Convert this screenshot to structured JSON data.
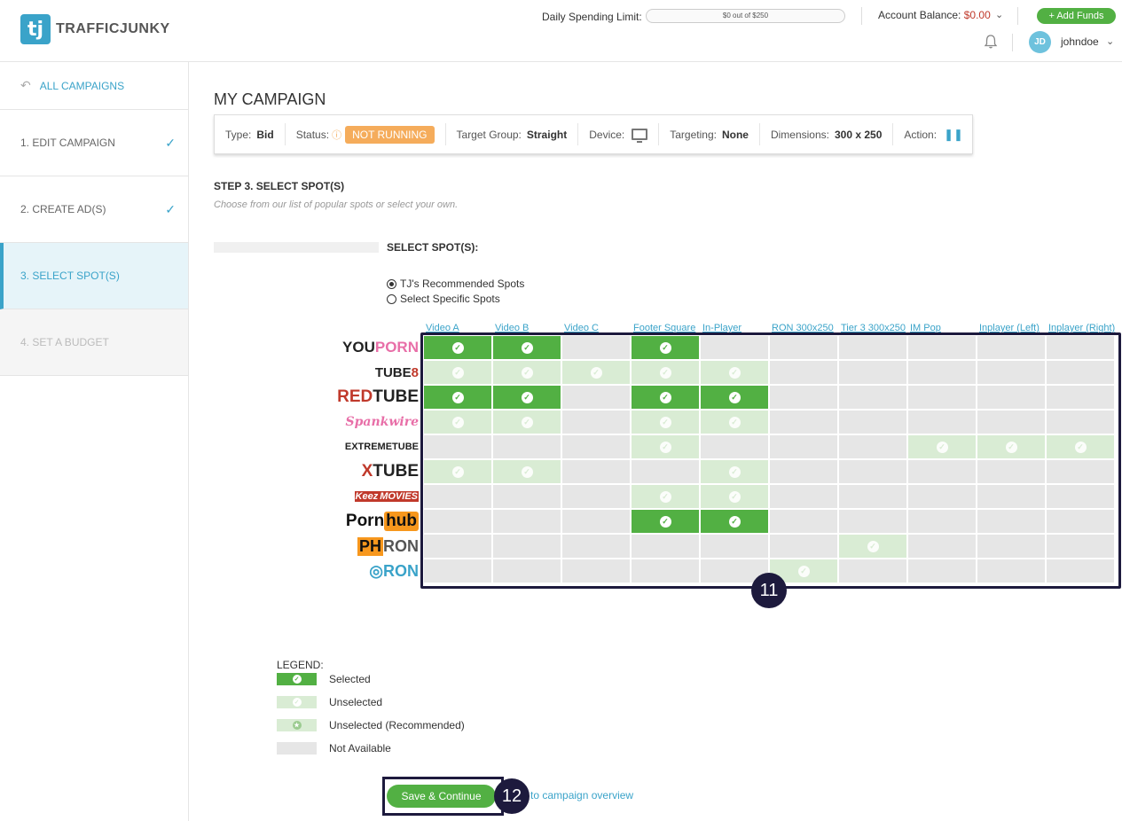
{
  "header": {
    "logo_mark": "tj",
    "logo_text": "TRAFFICJUNKY",
    "daily_limit_label": "Daily Spending Limit:",
    "daily_limit_value": "$0 out of $250",
    "account_balance_label": "Account Balance:",
    "account_balance_value": "$0.00",
    "add_funds_label": "+ Add Funds",
    "avatar_initials": "JD",
    "username": "johndoe",
    "icons": [
      "bell-icon",
      "chevron-down-icon"
    ]
  },
  "sidebar": {
    "all_campaigns": "ALL CAMPAIGNS",
    "items": [
      {
        "label": "1. EDIT CAMPAIGN",
        "state": "done"
      },
      {
        "label": "2. CREATE AD(S)",
        "state": "done"
      },
      {
        "label": "3. SELECT SPOT(S)",
        "state": "active"
      },
      {
        "label": "4. SET A BUDGET",
        "state": "disabled"
      }
    ]
  },
  "main": {
    "title": "MY CAMPAIGN",
    "info": {
      "type_label": "Type:",
      "type_value": "Bid",
      "status_label": "Status:",
      "status_value": "NOT RUNNING",
      "target_group_label": "Target Group:",
      "target_group_value": "Straight",
      "device_label": "Device:",
      "targeting_label": "Targeting:",
      "targeting_value": "None",
      "dimensions_label": "Dimensions:",
      "dimensions_value": "300 x 250",
      "action_label": "Action:"
    },
    "step_title": "STEP 3. SELECT SPOT(S)",
    "step_subtitle": "Choose from our list of popular spots or select your own.",
    "select_label": "SELECT SPOT(S):",
    "radio_recommended": "TJ's Recommended Spots",
    "radio_specific": "Select Specific Spots",
    "selected_radio": "recommended"
  },
  "grid": {
    "columns": [
      "Video A",
      "Video B",
      "Video C",
      "Footer Square",
      "In-Player",
      "RON 300x250",
      "Tier 3 300x250",
      "IM Pop",
      "Inplayer (Left)",
      "Inplayer (Right)"
    ],
    "sites": [
      {
        "name": "YOUPORN",
        "parts": [
          "YOU",
          "PORN"
        ],
        "colors": [
          "#222",
          "#e86fa8"
        ],
        "cells": [
          "s",
          "s",
          "n",
          "s",
          "n",
          "n",
          "n",
          "n",
          "n",
          "n"
        ]
      },
      {
        "name": "TUBE8",
        "parts": [
          "TUBE",
          "8"
        ],
        "colors": [
          "#222",
          "#c0392b"
        ],
        "cells": [
          "u",
          "u",
          "u",
          "u",
          "u",
          "n",
          "n",
          "n",
          "n",
          "n"
        ]
      },
      {
        "name": "REDTUBE",
        "parts": [
          "RED",
          "TUBE"
        ],
        "colors": [
          "#c0392b",
          "#222"
        ],
        "cells": [
          "s",
          "s",
          "n",
          "s",
          "s",
          "n",
          "n",
          "n",
          "n",
          "n"
        ]
      },
      {
        "name": "Spank wire",
        "parts": [
          "Spank",
          "wire"
        ],
        "colors": [
          "#e86fa8",
          "#e86fa8"
        ],
        "cells": [
          "u",
          "u",
          "n",
          "u",
          "u",
          "n",
          "n",
          "n",
          "n",
          "n"
        ]
      },
      {
        "name": "EXTREMETUBE",
        "parts": [
          "EXTREME",
          "TUBE"
        ],
        "colors": [
          "#222",
          "#222"
        ],
        "cells": [
          "n",
          "n",
          "n",
          "u",
          "n",
          "n",
          "n",
          "u",
          "u",
          "u"
        ]
      },
      {
        "name": "XTUBE",
        "parts": [
          "X",
          "TUBE"
        ],
        "colors": [
          "#c0392b",
          "#222"
        ],
        "cells": [
          "u",
          "u",
          "n",
          "n",
          "u",
          "n",
          "n",
          "n",
          "n",
          "n"
        ]
      },
      {
        "name": "Keez MOVIES",
        "parts": [
          "Keez",
          "MOVIES"
        ],
        "colors": [
          "#fff",
          "#fff"
        ],
        "cells": [
          "n",
          "n",
          "n",
          "u",
          "u",
          "n",
          "n",
          "n",
          "n",
          "n"
        ]
      },
      {
        "name": "Pornhub",
        "parts": [
          "Porn",
          "hub"
        ],
        "colors": [
          "#111",
          "#111"
        ],
        "cells": [
          "n",
          "n",
          "n",
          "s",
          "s",
          "n",
          "n",
          "n",
          "n",
          "n"
        ]
      },
      {
        "name": "PH RON",
        "parts": [
          "PH",
          "RON"
        ],
        "colors": [
          "#111",
          "#555"
        ],
        "cells": [
          "n",
          "n",
          "n",
          "n",
          "n",
          "n",
          "u",
          "n",
          "n",
          "n"
        ]
      },
      {
        "name": "RON",
        "parts": [
          "◎",
          "RON"
        ],
        "colors": [
          "#3aa3c9",
          "#3aa3c9"
        ],
        "cells": [
          "n",
          "n",
          "n",
          "n",
          "n",
          "u",
          "n",
          "n",
          "n",
          "n"
        ]
      }
    ]
  },
  "legend": {
    "title": "LEGEND:",
    "selected": "Selected",
    "unselected": "Unselected",
    "unselected_recommended": "Unselected (Recommended)",
    "not_available": "Not Available"
  },
  "footer": {
    "save_label": "Save & Continue",
    "back_label": "Back to campaign overview"
  },
  "markers": [
    "11",
    "12"
  ],
  "colors": {
    "accent": "#3aa3c9",
    "selected": "#52b043",
    "unselected": "#d9ecd4",
    "not_available": "#e6e6e6",
    "status": "#f5ac5b",
    "marker": "#1d1a3d"
  }
}
